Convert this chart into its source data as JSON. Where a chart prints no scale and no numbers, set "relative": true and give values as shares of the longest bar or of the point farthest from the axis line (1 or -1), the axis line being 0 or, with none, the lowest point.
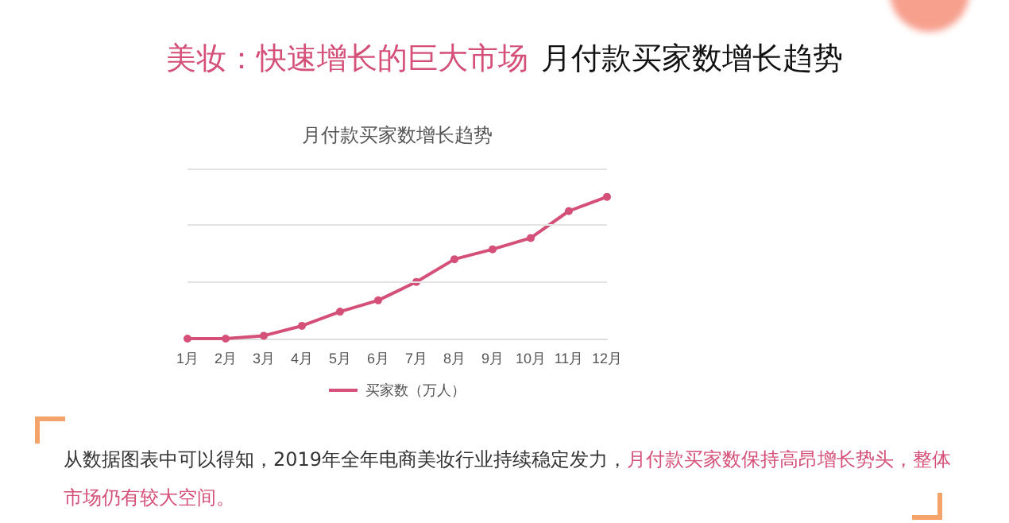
{
  "chart_data": {
    "type": "line",
    "title": "月付款买家数增长趋势",
    "annotations": [
      "美妆：快速增长的巨大市场",
      "月付款买家数增长趋势",
      "从数据图表中可以得知，2019年全年电商美妆行业持续稳定发力，",
      "月付款买家数保持高昂增长势头，整体市场仍有较大空间。"
    ],
    "categories": [
      "1月",
      "2月",
      "3月",
      "4月",
      "5月",
      "6月",
      "7月",
      "8月",
      "9月",
      "10月",
      "11月",
      "12月"
    ],
    "series": [
      {
        "name": "买家数（万人）",
        "color": "#d45079",
        "values": [
          0,
          0,
          0.02,
          0.09,
          0.19,
          0.27,
          0.4,
          0.56,
          0.63,
          0.71,
          0.9,
          1
        ]
      }
    ],
    "ref_lines": [
      {
        "axis": "y",
        "value": 0.4,
        "color": "#e4e4e4",
        "line_style": "solid"
      },
      {
        "axis": "y",
        "value": 0.8,
        "color": "#e4e4e4",
        "line_style": "solid"
      },
      {
        "axis": "y",
        "value": 1.2,
        "color": "#e4e4e4",
        "line_style": "solid"
      }
    ],
    "relative": true,
    "legend": "bottom",
    "marker": "circle",
    "line_style": "solid"
  }
}
